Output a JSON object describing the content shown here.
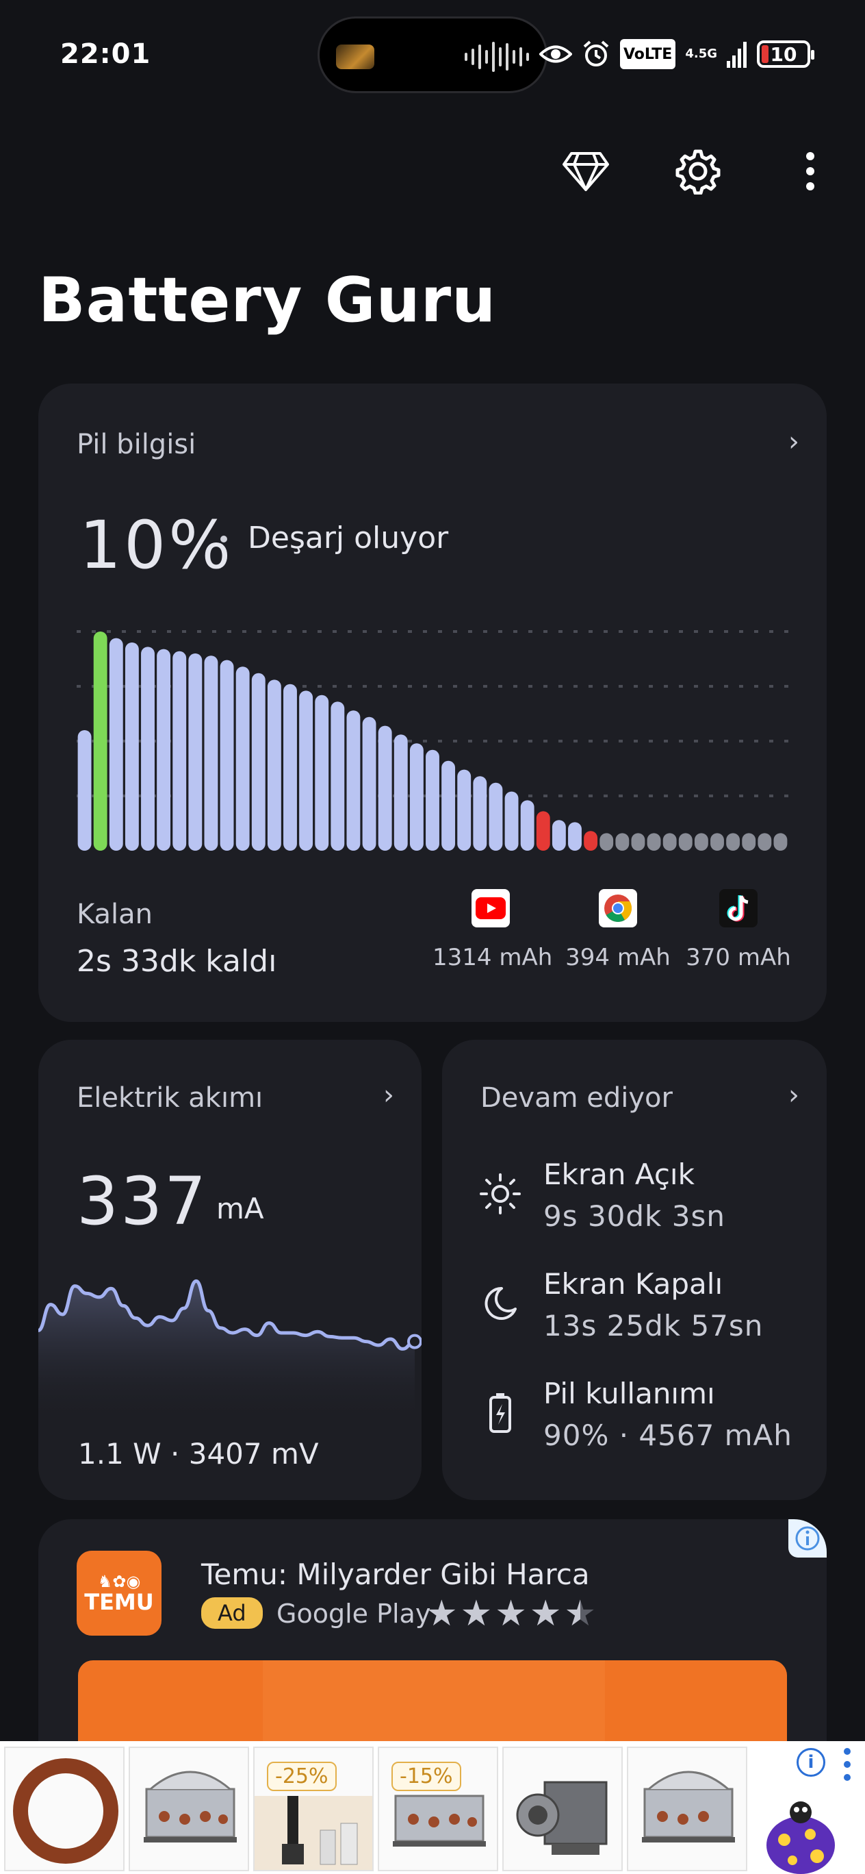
{
  "status_bar": {
    "time": "22:01",
    "network_label": "VoLTE",
    "network_type": "4.5G",
    "battery_level": "10"
  },
  "toolbar": {
    "premium_icon": "diamond-icon",
    "settings_icon": "gear-icon",
    "more_icon": "more-vert-icon"
  },
  "app": {
    "title": "Battery Guru"
  },
  "battery_card": {
    "heading": "Pil bilgisi",
    "percent": "10%",
    "status": "Deşarj oluyor",
    "remaining_label": "Kalan",
    "remaining_value": "2s 33dk kaldı",
    "apps": [
      {
        "name": "YouTube",
        "icon": "youtube-icon",
        "usage": "1314 mAh"
      },
      {
        "name": "Chrome",
        "icon": "chrome-icon",
        "usage": "394 mAh"
      },
      {
        "name": "TikTok",
        "icon": "tiktok-icon",
        "usage": "370 mAh"
      }
    ]
  },
  "current_card": {
    "heading": "Elektrik akımı",
    "value": "337",
    "unit": "mA",
    "sub": "1.1 W · 3407 mV"
  },
  "ongoing_card": {
    "heading": "Devam ediyor",
    "rows": [
      {
        "icon": "sun-icon",
        "title": "Ekran Açık",
        "value": "9s 30dk 3sn"
      },
      {
        "icon": "moon-icon",
        "title": "Ekran Kapalı",
        "value": "13s 25dk 57sn"
      },
      {
        "icon": "battery-charging-icon",
        "title": "Pil kullanımı",
        "value": "90% · 4567 mAh"
      }
    ]
  },
  "ad_card": {
    "logo_text": "TEMU",
    "title": "Temu: Milyarder Gibi Harca",
    "badge": "Ad",
    "store": "Google Play",
    "rating": 4.5
  },
  "bottom_ad": {
    "tags": [
      "-25%",
      "-15%"
    ]
  },
  "chart_data": [
    {
      "type": "bar",
      "ylim": [
        0,
        100
      ],
      "grid": true,
      "values": [
        55,
        100,
        97,
        95,
        93,
        92,
        91,
        90,
        89,
        87,
        84,
        81,
        78,
        76,
        73,
        71,
        68,
        64,
        61,
        57,
        53,
        49,
        46,
        41,
        37,
        34,
        31,
        27,
        23,
        18,
        14,
        13,
        9,
        8,
        8,
        8,
        8,
        8,
        8,
        8,
        8,
        8,
        8,
        8,
        8
      ],
      "highlight_index": 1,
      "highlight_color": "#7ed957",
      "low_indices": [
        29,
        32
      ],
      "low_color": "#e53935",
      "future_start": 33,
      "base_color": "#b9c4f2",
      "future_color": "#8a8d97"
    },
    {
      "type": "area",
      "values": [
        42,
        63,
        55,
        78,
        72,
        69,
        76,
        62,
        52,
        46,
        53,
        50,
        60,
        82,
        58,
        44,
        40,
        43,
        38,
        48,
        40,
        40,
        38,
        41,
        37,
        36,
        36,
        33,
        30,
        35,
        27,
        33
      ],
      "line_color": "#a3b1f0",
      "ylim": [
        0,
        100
      ]
    }
  ]
}
